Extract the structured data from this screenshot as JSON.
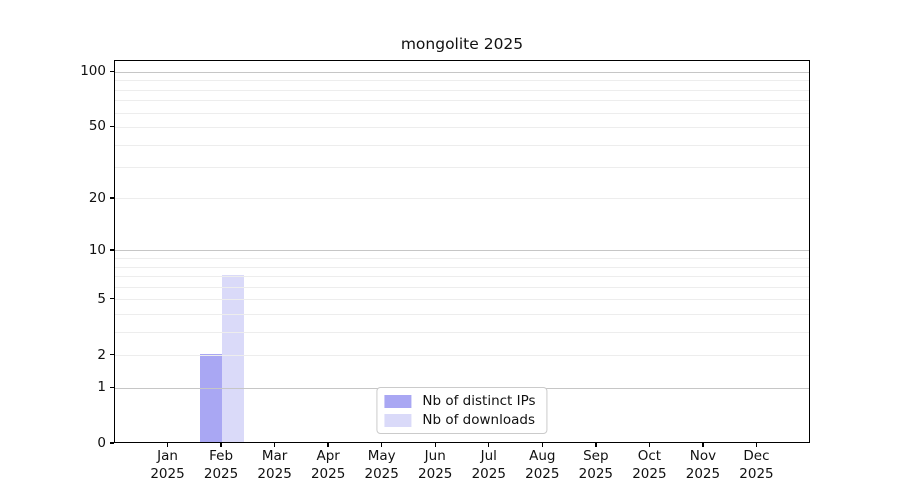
{
  "chart_data": {
    "type": "bar",
    "title": "mongolite 2025",
    "categories": [
      "Jan",
      "Feb",
      "Mar",
      "Apr",
      "May",
      "Jun",
      "Jul",
      "Aug",
      "Sep",
      "Oct",
      "Nov",
      "Dec"
    ],
    "category_year": "2025",
    "series": [
      {
        "name": "Nb of distinct IPs",
        "color": "#a9a7f3",
        "values": [
          0,
          2,
          0,
          0,
          0,
          0,
          0,
          0,
          0,
          0,
          0,
          0
        ]
      },
      {
        "name": "Nb of downloads",
        "color": "#dadaf9",
        "values": [
          0,
          7,
          0,
          0,
          0,
          0,
          0,
          0,
          0,
          0,
          0,
          0
        ]
      }
    ],
    "xlabel": "",
    "ylabel": "",
    "y_ticks": [
      0,
      1,
      2,
      5,
      10,
      20,
      50,
      100
    ],
    "scale": "log1p",
    "ylim": [
      0,
      115.5
    ],
    "grid_major": [
      1,
      10,
      100
    ],
    "grid_minor": [
      2,
      3,
      4,
      5,
      6,
      7,
      8,
      9,
      20,
      30,
      40,
      50,
      60,
      70,
      80,
      90
    ],
    "legend_position": "lower center",
    "colors": {
      "grid_major": "#c6c6c6",
      "grid_minor": "#ededed",
      "axis": "#000000",
      "legend_border": "#cbcbcb",
      "background": "#ffffff"
    }
  }
}
